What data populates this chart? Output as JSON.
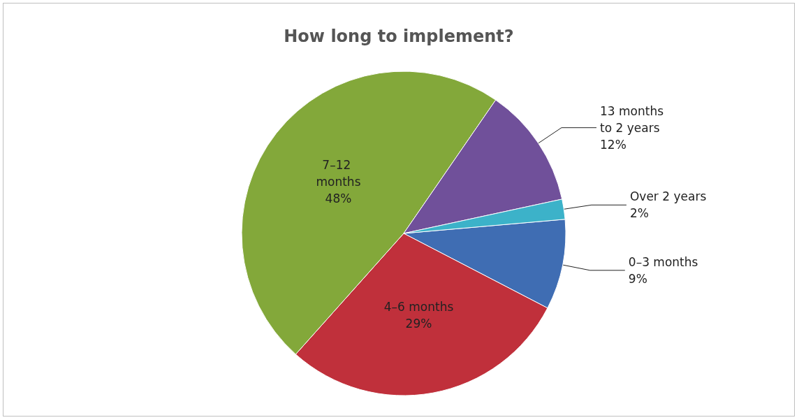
{
  "chart_data": {
    "type": "pie",
    "title": "How long to implement?",
    "categories": [
      "0–3 months",
      "4–6 months",
      "7–12 months",
      "13 months to 2 years",
      "Over 2 years"
    ],
    "values": [
      9,
      29,
      48,
      12,
      2
    ],
    "value_labels": [
      "9%",
      "29%",
      "48%",
      "12%",
      "2%"
    ],
    "colors": [
      "#3f6db3",
      "#c0303b",
      "#83a83a",
      "#70509a",
      "#3cb2c9"
    ],
    "legend": false
  }
}
